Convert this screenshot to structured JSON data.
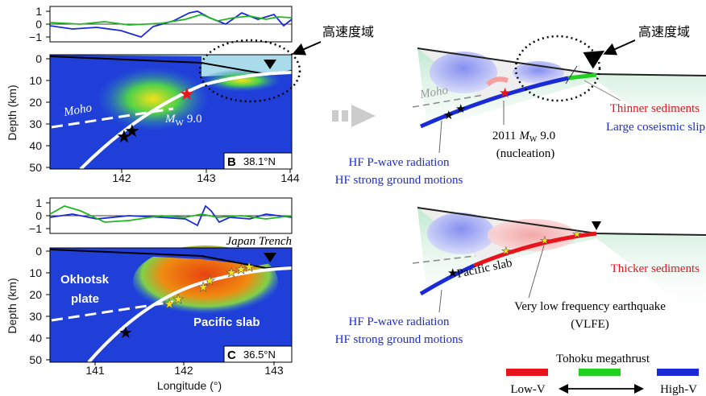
{
  "panel_b": {
    "label": "B",
    "latitude": "38.1°N",
    "top_ticks": [
      "1",
      "0",
      "−1"
    ],
    "depth_ticks": [
      "0",
      "10",
      "20",
      "30",
      "40",
      "50"
    ],
    "depth_label": "Depth (km)",
    "lon_ticks": [
      "142",
      "143",
      "144"
    ],
    "moho": "Moho",
    "mw_symbol": "M",
    "mw_sub": "W",
    "mw_value": "9.0",
    "callout": "高速度域"
  },
  "panel_c": {
    "label": "C",
    "latitude": "36.5°N",
    "top_ticks": [
      "1",
      "0",
      "−1"
    ],
    "depth_ticks": [
      "0",
      "10",
      "20",
      "30",
      "40",
      "50"
    ],
    "depth_label": "Depth (km)",
    "lon_ticks": [
      "141",
      "142",
      "143"
    ],
    "lon_label": "Longitude (°)",
    "trench": "Japan Trench",
    "plate_line1": "Okhotsk",
    "plate_line2": "plate",
    "slab": "Pacific slab"
  },
  "schematic_top": {
    "callout": "高速度域",
    "moho": "Moho",
    "event_year": "2011",
    "mw_symbol": "M",
    "mw_sub": "W",
    "mw_value": "9.0",
    "event_note": "(nucleation)",
    "sediments": "Thinner sediments",
    "slip": "Large coseismic slip",
    "radiation": "HF P-wave radiation",
    "motions": "HF strong ground motions"
  },
  "schematic_bottom": {
    "slab": "Pacific slab",
    "sediments": "Thicker sediments",
    "vlfe_line1": "Very low frequency earthquake",
    "vlfe_line2": "(VLFE)",
    "radiation": "HF P-wave radiation",
    "motions": "HF strong ground motions"
  },
  "legend": {
    "title": "Tohoku megathrust",
    "low": "Low-V",
    "high": "High-V"
  }
}
